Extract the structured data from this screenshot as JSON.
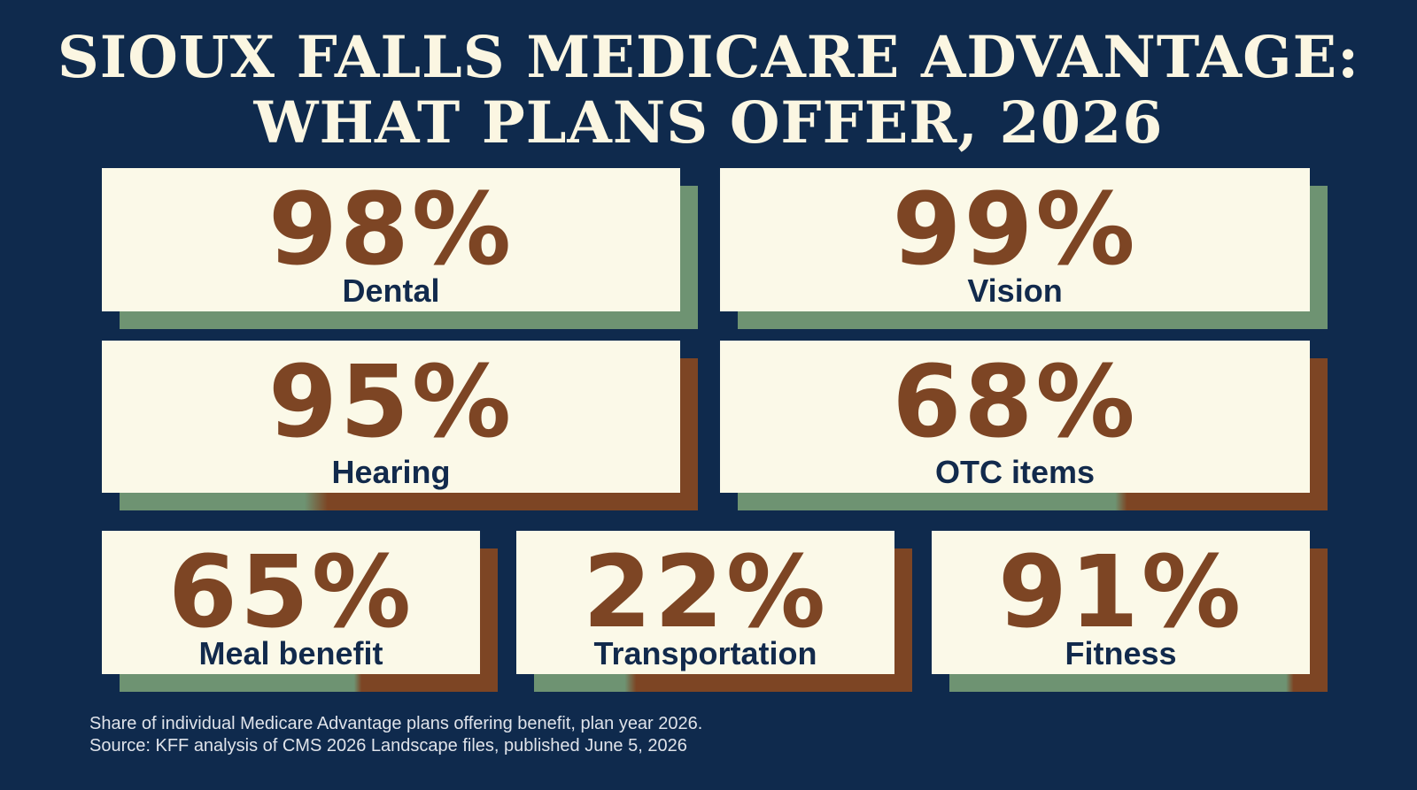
{
  "title_line1": "SIOUX FALLS MEDICARE ADVANTAGE:",
  "title_line2": "WHAT PLANS OFFER, 2026",
  "stats": [
    {
      "value": "98%",
      "label": "Dental"
    },
    {
      "value": "99%",
      "label": "Vision"
    },
    {
      "value": "95%",
      "label": "Hearing"
    },
    {
      "value": "68%",
      "label": "OTC items"
    },
    {
      "value": "65%",
      "label": "Meal benefit"
    },
    {
      "value": "22%",
      "label": "Transportation"
    },
    {
      "value": "91%",
      "label": "Fitness"
    }
  ],
  "footnote1": "Share of individual Medicare Advantage plans offering benefit, plan year 2026.",
  "footnote2": "Source: KFF analysis of CMS 2026 Landscape files, published June 5, 2026",
  "colors": {
    "background": "#0f2a4d",
    "card": "#fbf9e8",
    "number": "#7d4524",
    "label": "#122a4c",
    "shadow_green": "#6e9372",
    "shadow_brown": "#7d4524"
  }
}
